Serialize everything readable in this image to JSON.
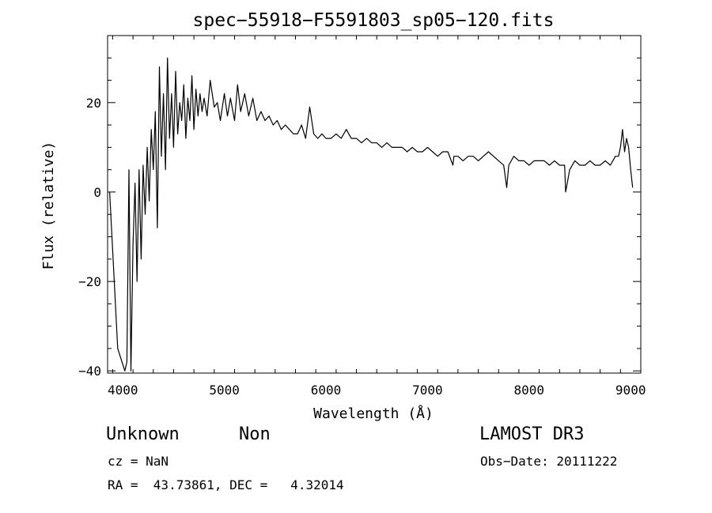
{
  "chart_data": {
    "type": "line",
    "title": "spec−55918−F5591803_sp05−120.fits",
    "xlabel": "Wavelength (Å)",
    "ylabel": "Flux (relative)",
    "xlim": [
      3850,
      9100
    ],
    "ylim": [
      -40.5,
      35
    ],
    "xticks": [
      4000,
      5000,
      6000,
      7000,
      8000,
      9000
    ],
    "xtick_labels": [
      "4000",
      "5000",
      "6000",
      "7000",
      "8000",
      "9000"
    ],
    "yticks": [
      -40,
      -20,
      0,
      20
    ],
    "ytick_labels": [
      "−40",
      "−20",
      "0",
      "20"
    ],
    "grid": false,
    "series": [
      {
        "color": "#000000",
        "x": [
          3870,
          3950,
          4020,
          4040,
          4060,
          4080,
          4100,
          4120,
          4140,
          4160,
          4180,
          4200,
          4220,
          4240,
          4260,
          4280,
          4300,
          4320,
          4340,
          4360,
          4380,
          4400,
          4420,
          4440,
          4460,
          4480,
          4500,
          4520,
          4540,
          4560,
          4580,
          4600,
          4620,
          4640,
          4660,
          4680,
          4700,
          4720,
          4740,
          4760,
          4780,
          4800,
          4830,
          4860,
          4900,
          4930,
          4960,
          5000,
          5030,
          5060,
          5100,
          5130,
          5160,
          5200,
          5240,
          5280,
          5320,
          5360,
          5400,
          5440,
          5480,
          5520,
          5560,
          5600,
          5640,
          5680,
          5720,
          5760,
          5800,
          5840,
          5880,
          5920,
          5960,
          6000,
          6050,
          6100,
          6150,
          6200,
          6250,
          6300,
          6350,
          6400,
          6450,
          6500,
          6550,
          6600,
          6650,
          6700,
          6750,
          6800,
          6850,
          6900,
          6950,
          7000,
          7050,
          7100,
          7150,
          7200,
          7250,
          7260,
          7300,
          7350,
          7400,
          7450,
          7500,
          7550,
          7600,
          7650,
          7700,
          7750,
          7780,
          7800,
          7850,
          7900,
          7950,
          8000,
          8050,
          8100,
          8150,
          8200,
          8250,
          8300,
          8350,
          8360,
          8400,
          8450,
          8500,
          8550,
          8600,
          8650,
          8700,
          8750,
          8800,
          8850,
          8880,
          8900,
          8920,
          8940,
          8960,
          8980,
          9000,
          9020
        ],
        "y": [
          0,
          -35,
          -40,
          -38,
          5,
          -40,
          -12,
          2,
          -20,
          5,
          -15,
          6,
          -5,
          10,
          -2,
          14,
          5,
          18,
          -8,
          28,
          8,
          22,
          5,
          30,
          12,
          22,
          10,
          27,
          13,
          20,
          16,
          24,
          12,
          21,
          16,
          26,
          14,
          23,
          17,
          22,
          18,
          21,
          17,
          25,
          19,
          20,
          16,
          22,
          17,
          21,
          16,
          24,
          18,
          22,
          17,
          21,
          16,
          18,
          16,
          17,
          15,
          16,
          14,
          15,
          14,
          13,
          13,
          15,
          12,
          19,
          13,
          12,
          13,
          12,
          12,
          13,
          12,
          14,
          12,
          12,
          11,
          12,
          11,
          11,
          10,
          11,
          10,
          10,
          10,
          9,
          10,
          9,
          9,
          10,
          9,
          8,
          9,
          9,
          6,
          8,
          8,
          7,
          8,
          8,
          7,
          8,
          9,
          8,
          7,
          6,
          1,
          6,
          8,
          7,
          7,
          6,
          7,
          7,
          7,
          6,
          7,
          6,
          6,
          0,
          5,
          7,
          6,
          6,
          7,
          6,
          6,
          7,
          6,
          8,
          8,
          10,
          14,
          9,
          12,
          10,
          5,
          1
        ]
      }
    ]
  },
  "info": {
    "class_label": "Unknown",
    "subclass_label": "Non",
    "survey": "LAMOST DR3",
    "cz_line": "cz = NaN",
    "obs_date_line": "Obs−Date: 20111222",
    "coords_line": "RA =  43.73861, DEC =   4.32014"
  }
}
